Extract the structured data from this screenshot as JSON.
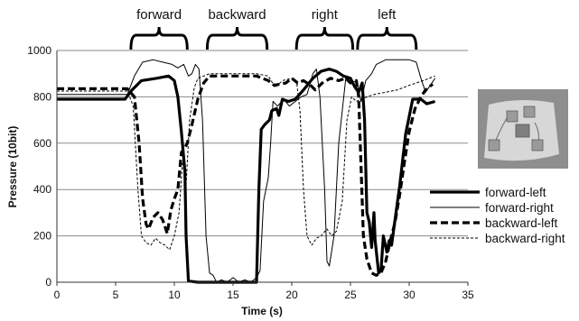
{
  "chart_data": {
    "type": "line",
    "xlabel": "Time (s)",
    "ylabel": "Pressure (10bit)",
    "xlim": [
      0,
      35
    ],
    "ylim": [
      0,
      1000
    ],
    "x_ticks": [
      0,
      5,
      10,
      15,
      20,
      25,
      30,
      35
    ],
    "y_ticks": [
      0,
      200,
      400,
      600,
      800,
      1000
    ],
    "grid": "horizontal",
    "legend_position": "right",
    "phases": [
      {
        "label": "forward",
        "start": 6.3,
        "end": 11.1
      },
      {
        "label": "backward",
        "start": 12.8,
        "end": 17.9
      },
      {
        "label": "right",
        "start": 20.4,
        "end": 25.2
      },
      {
        "label": "left",
        "start": 25.6,
        "end": 30.6
      }
    ],
    "series": [
      {
        "name": "forward-left",
        "style": "thick-solid",
        "points": [
          [
            0,
            790
          ],
          [
            5.8,
            790
          ],
          [
            6.4,
            830
          ],
          [
            7.2,
            870
          ],
          [
            8.5,
            880
          ],
          [
            9.5,
            890
          ],
          [
            10.0,
            870
          ],
          [
            10.3,
            800
          ],
          [
            10.6,
            650
          ],
          [
            10.9,
            480
          ],
          [
            11.0,
            200
          ],
          [
            11.2,
            5
          ],
          [
            12,
            0
          ],
          [
            17,
            0
          ],
          [
            17.2,
            400
          ],
          [
            17.4,
            660
          ],
          [
            17.7,
            680
          ],
          [
            18.1,
            700
          ],
          [
            18.3,
            740
          ],
          [
            18.7,
            750
          ],
          [
            18.9,
            720
          ],
          [
            19.2,
            790
          ],
          [
            19.7,
            780
          ],
          [
            20.3,
            790
          ],
          [
            21.0,
            830
          ],
          [
            21.8,
            880
          ],
          [
            22.5,
            910
          ],
          [
            23.2,
            920
          ],
          [
            23.8,
            910
          ],
          [
            24.4,
            890
          ],
          [
            25.0,
            880
          ],
          [
            25.4,
            840
          ],
          [
            25.7,
            820
          ],
          [
            26.0,
            860
          ],
          [
            26.2,
            700
          ],
          [
            26.4,
            300
          ],
          [
            26.6,
            260
          ],
          [
            26.8,
            150
          ],
          [
            27.0,
            300
          ],
          [
            27.1,
            180
          ],
          [
            27.4,
            40
          ],
          [
            27.6,
            50
          ],
          [
            27.8,
            200
          ],
          [
            28.1,
            130
          ],
          [
            28.3,
            180
          ],
          [
            28.5,
            160
          ],
          [
            29.2,
            420
          ],
          [
            29.7,
            640
          ],
          [
            30.3,
            790
          ],
          [
            31.0,
            790
          ],
          [
            31.5,
            770
          ],
          [
            32.2,
            780
          ]
        ]
      },
      {
        "name": "forward-right",
        "style": "thin-solid",
        "points": [
          [
            0,
            810
          ],
          [
            6.0,
            810
          ],
          [
            6.6,
            890
          ],
          [
            7.3,
            950
          ],
          [
            8.2,
            960
          ],
          [
            9.0,
            950
          ],
          [
            9.8,
            940
          ],
          [
            10.3,
            925
          ],
          [
            10.8,
            940
          ],
          [
            11.2,
            890
          ],
          [
            11.5,
            900
          ],
          [
            11.8,
            940
          ],
          [
            12.1,
            920
          ],
          [
            12.4,
            700
          ],
          [
            12.7,
            200
          ],
          [
            13.0,
            40
          ],
          [
            13.3,
            30
          ],
          [
            13.6,
            0
          ],
          [
            14.0,
            10
          ],
          [
            14.5,
            0
          ],
          [
            15.0,
            20
          ],
          [
            15.5,
            0
          ],
          [
            16.0,
            10
          ],
          [
            16.5,
            0
          ],
          [
            17.0,
            20
          ],
          [
            17.3,
            50
          ],
          [
            17.6,
            350
          ],
          [
            17.8,
            400
          ],
          [
            18.0,
            450
          ],
          [
            18.2,
            600
          ],
          [
            18.4,
            780
          ],
          [
            18.8,
            760
          ],
          [
            19.3,
            790
          ],
          [
            19.8,
            760
          ],
          [
            20.3,
            780
          ],
          [
            20.8,
            800
          ],
          [
            21.3,
            810
          ],
          [
            21.8,
            900
          ],
          [
            22.1,
            920
          ],
          [
            22.4,
            800
          ],
          [
            22.8,
            400
          ],
          [
            23.0,
            90
          ],
          [
            23.2,
            70
          ],
          [
            23.6,
            200
          ],
          [
            24.0,
            600
          ],
          [
            24.6,
            880
          ],
          [
            25.1,
            860
          ],
          [
            25.5,
            870
          ],
          [
            25.9,
            780
          ],
          [
            26.3,
            870
          ],
          [
            26.8,
            900
          ],
          [
            27.2,
            940
          ],
          [
            28.0,
            960
          ],
          [
            29.0,
            960
          ],
          [
            30.0,
            960
          ],
          [
            30.6,
            950
          ],
          [
            31.0,
            880
          ],
          [
            31.4,
            820
          ],
          [
            32.2,
            880
          ]
        ]
      },
      {
        "name": "backward-left",
        "style": "thick-dashed",
        "points": [
          [
            0,
            835
          ],
          [
            6.0,
            835
          ],
          [
            6.6,
            800
          ],
          [
            7.0,
            600
          ],
          [
            7.3,
            360
          ],
          [
            7.6,
            250
          ],
          [
            7.8,
            230
          ],
          [
            8.2,
            280
          ],
          [
            8.6,
            300
          ],
          [
            9.0,
            270
          ],
          [
            9.4,
            210
          ],
          [
            9.7,
            310
          ],
          [
            10.0,
            360
          ],
          [
            10.3,
            400
          ],
          [
            10.6,
            560
          ],
          [
            10.9,
            580
          ],
          [
            11.1,
            600
          ],
          [
            11.5,
            680
          ],
          [
            12.0,
            790
          ],
          [
            12.5,
            860
          ],
          [
            13.0,
            890
          ],
          [
            14.0,
            890
          ],
          [
            15.0,
            890
          ],
          [
            16.0,
            890
          ],
          [
            17.0,
            890
          ],
          [
            18.0,
            870
          ],
          [
            18.5,
            850
          ],
          [
            19.0,
            855
          ],
          [
            19.5,
            860
          ],
          [
            20.0,
            880
          ],
          [
            20.5,
            860
          ],
          [
            21.0,
            870
          ],
          [
            21.6,
            850
          ],
          [
            22.0,
            830
          ],
          [
            22.6,
            860
          ],
          [
            23.3,
            880
          ],
          [
            24.0,
            870
          ],
          [
            24.6,
            880
          ],
          [
            25.0,
            860
          ],
          [
            25.5,
            870
          ],
          [
            25.7,
            800
          ],
          [
            25.9,
            500
          ],
          [
            26.1,
            200
          ],
          [
            26.4,
            100
          ],
          [
            26.8,
            40
          ],
          [
            27.2,
            30
          ],
          [
            27.6,
            40
          ],
          [
            28.0,
            90
          ],
          [
            28.4,
            180
          ],
          [
            28.8,
            260
          ],
          [
            29.2,
            380
          ],
          [
            29.6,
            520
          ],
          [
            30.0,
            650
          ],
          [
            30.5,
            750
          ],
          [
            31.0,
            800
          ],
          [
            31.4,
            830
          ],
          [
            32.0,
            855
          ]
        ]
      },
      {
        "name": "backward-right",
        "style": "thin-dashed",
        "points": [
          [
            0,
            825
          ],
          [
            6.0,
            825
          ],
          [
            6.5,
            760
          ],
          [
            6.9,
            400
          ],
          [
            7.2,
            200
          ],
          [
            7.6,
            170
          ],
          [
            8.0,
            160
          ],
          [
            8.4,
            190
          ],
          [
            8.8,
            170
          ],
          [
            9.2,
            160
          ],
          [
            9.6,
            140
          ],
          [
            10.0,
            200
          ],
          [
            10.4,
            300
          ],
          [
            10.7,
            520
          ],
          [
            11.0,
            420
          ],
          [
            11.3,
            700
          ],
          [
            11.7,
            840
          ],
          [
            12.0,
            880
          ],
          [
            12.5,
            890
          ],
          [
            13.0,
            900
          ],
          [
            15.0,
            900
          ],
          [
            17.0,
            900
          ],
          [
            18.0,
            890
          ],
          [
            18.6,
            840
          ],
          [
            19.2,
            870
          ],
          [
            20.0,
            880
          ],
          [
            20.4,
            870
          ],
          [
            20.7,
            740
          ],
          [
            21.0,
            400
          ],
          [
            21.3,
            200
          ],
          [
            21.7,
            160
          ],
          [
            22.1,
            190
          ],
          [
            22.5,
            200
          ],
          [
            23.0,
            230
          ],
          [
            23.4,
            200
          ],
          [
            23.8,
            220
          ],
          [
            24.3,
            350
          ],
          [
            24.7,
            700
          ],
          [
            25.1,
            800
          ],
          [
            25.5,
            780
          ],
          [
            25.9,
            790
          ],
          [
            26.4,
            800
          ],
          [
            27.0,
            810
          ],
          [
            28.0,
            820
          ],
          [
            29.0,
            830
          ],
          [
            30.0,
            850
          ],
          [
            30.6,
            860
          ],
          [
            31.2,
            870
          ],
          [
            32.2,
            890
          ]
        ]
      }
    ]
  }
}
